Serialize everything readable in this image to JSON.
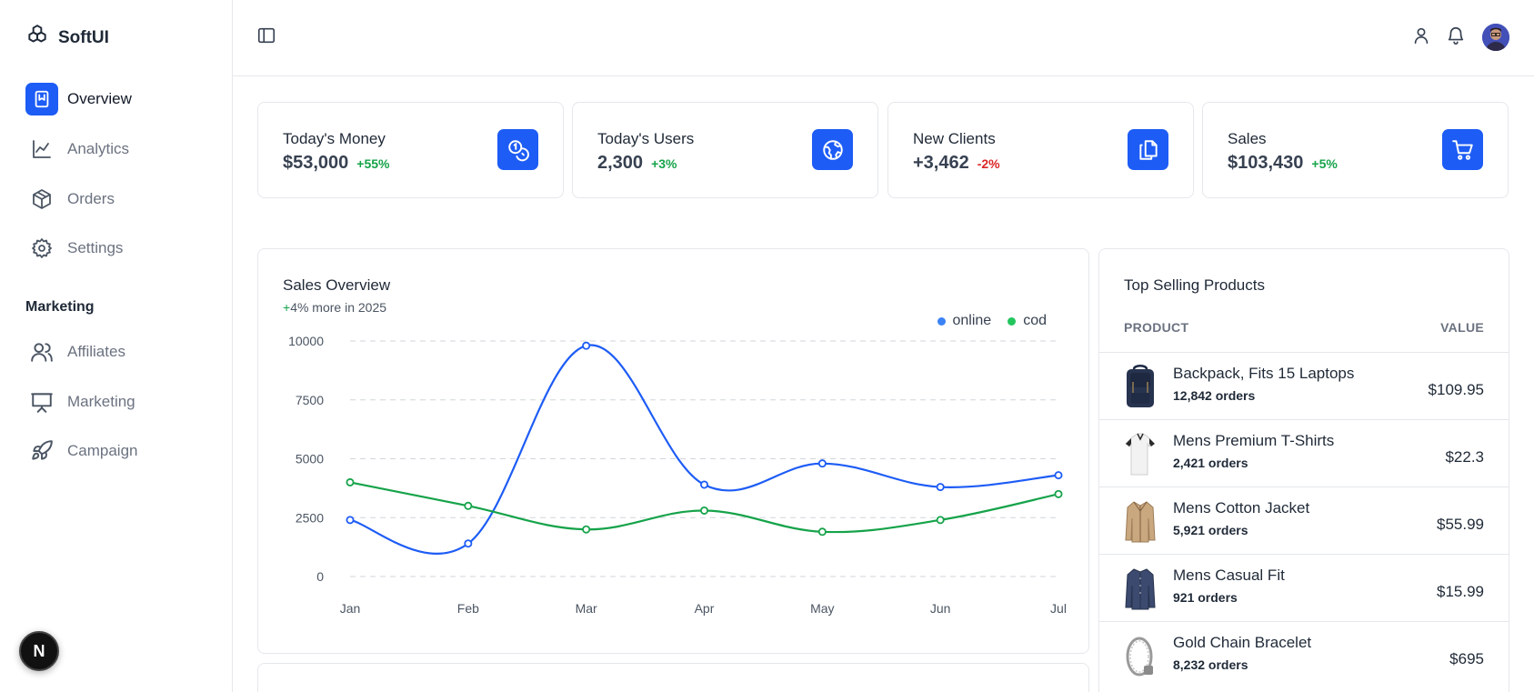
{
  "brand": {
    "name": "SoftUI"
  },
  "sidebar": {
    "items": [
      {
        "label": "Overview",
        "icon": "bookmark-icon",
        "active": true
      },
      {
        "label": "Analytics",
        "icon": "line-chart-icon"
      },
      {
        "label": "Orders",
        "icon": "box-icon"
      },
      {
        "label": "Settings",
        "icon": "gear-icon"
      }
    ],
    "section_title": "Marketing",
    "marketing_items": [
      {
        "label": "Affiliates",
        "icon": "users-icon"
      },
      {
        "label": "Marketing",
        "icon": "presentation-icon"
      },
      {
        "label": "Campaign",
        "icon": "rocket-icon"
      }
    ],
    "badge": "N"
  },
  "stats": [
    {
      "label": "Today's Money",
      "value": "$53,000",
      "change": "+55%",
      "trend": "up",
      "icon": "coins-icon"
    },
    {
      "label": "Today's Users",
      "value": "2,300",
      "change": "+3%",
      "trend": "up",
      "icon": "globe-icon"
    },
    {
      "label": "New Clients",
      "value": "+3,462",
      "change": "-2%",
      "trend": "down",
      "icon": "files-icon"
    },
    {
      "label": "Sales",
      "value": "$103,430",
      "change": "+5%",
      "trend": "up",
      "icon": "cart-icon"
    }
  ],
  "sales_overview": {
    "title": "Sales Overview",
    "subtitle_plus": "+",
    "subtitle_rest": "4% more in 2025"
  },
  "chart_data": {
    "type": "line",
    "categories": [
      "Jan",
      "Feb",
      "Mar",
      "Apr",
      "May",
      "Jun",
      "Jul"
    ],
    "series": [
      {
        "name": "online",
        "color": "#1d5cf5",
        "values": [
          2400,
          1400,
          9800,
          3900,
          4800,
          3800,
          4300
        ]
      },
      {
        "name": "cod",
        "color": "#16a34a",
        "values": [
          4000,
          3000,
          2000,
          2800,
          1900,
          2400,
          3500
        ]
      }
    ],
    "yticks": [
      "10000",
      "7500",
      "5000",
      "2500",
      "0"
    ],
    "ylim": [
      0,
      10000
    ],
    "grid": true,
    "legend_position": "top-right"
  },
  "top_products": {
    "title": "Top Selling Products",
    "col_product": "PRODUCT",
    "col_value": "VALUE",
    "items": [
      {
        "name": "Backpack, Fits 15 Laptops",
        "orders": "12,842 orders",
        "value": "$109.95",
        "thumb": "backpack"
      },
      {
        "name": "Mens Premium T-Shirts",
        "orders": "2,421 orders",
        "value": "$22.3",
        "thumb": "tshirt"
      },
      {
        "name": "Mens Cotton Jacket",
        "orders": "5,921 orders",
        "value": "$55.99",
        "thumb": "jacket"
      },
      {
        "name": "Mens Casual Fit",
        "orders": "921 orders",
        "value": "$15.99",
        "thumb": "shirt"
      },
      {
        "name": "Gold Chain Bracelet",
        "orders": "8,232 orders",
        "value": "$695",
        "thumb": "bracelet"
      }
    ]
  }
}
